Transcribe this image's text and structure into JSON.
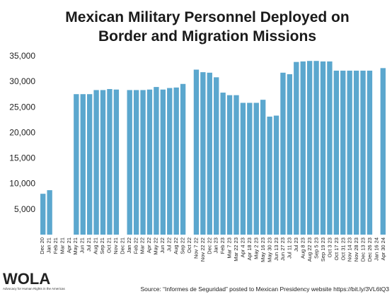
{
  "chart_data": {
    "type": "bar",
    "title_line1": "Mexican Military Personnel Deployed on",
    "title_line2": "Border and Migration Missions",
    "ylim": [
      0,
      35000
    ],
    "yticks": [
      "5,000",
      "10,000",
      "15,000",
      "20,000",
      "25,000",
      "30,000",
      "35,000"
    ],
    "ytick_values": [
      5000,
      10000,
      15000,
      20000,
      25000,
      30000,
      35000
    ],
    "bar_color": "#5ba7ce",
    "grid": false,
    "categories": [
      "Dec 20",
      "",
      "Jan 21",
      "",
      "Feb 21",
      "Mar 21",
      "Apr 21",
      "May 21",
      "",
      "Jun 21",
      "",
      "Jul 21",
      "Aug 21",
      "",
      "Sep 21",
      "",
      "Oct 21",
      "",
      "Nov 21",
      "",
      "Dec 21",
      "Jan 22",
      "",
      "Feb 22",
      "",
      "Mar 22",
      "Apr 22",
      "",
      "May 22",
      "",
      "Jun 22",
      "",
      "Jul 22",
      "Aug 22",
      "",
      "Sep 22",
      "",
      "Oct 22",
      "Nov 7 22",
      "",
      "Nov 22 22",
      "",
      "Dec 22",
      "",
      "Jan 23",
      "",
      "Feb 23",
      "",
      "Mar 7 23",
      "",
      "Mar 22 23",
      "",
      "Apr 4 23",
      "",
      "Apr 18 23",
      "",
      "May 2 23",
      "",
      "May 16 23",
      "",
      "May 30 23",
      "",
      "Jun 13 23",
      "",
      "Jun 27 23",
      "",
      "Jul 11 23",
      "",
      "Jul 23",
      "Aug 8 23",
      "",
      "Aug 22 23",
      "",
      "Sep 5 23",
      "",
      "Sep 19 23",
      "",
      "Oct 3 23",
      "",
      "Oct 17 23",
      "",
      "Oct 31 23",
      "",
      "Nov 14 23",
      "",
      "Nov 28 23",
      "",
      "Dec 13 23",
      "",
      "Dec 26 23",
      "",
      "Jan 16 24",
      "",
      "Apr 30 24"
    ],
    "x_labels": [
      "Dec 20",
      "Jan 21",
      "Feb 21",
      "Mar 21",
      "Apr 21",
      "May 21",
      "Jun 21",
      "Jul 21",
      "Aug 21",
      "Sep 21",
      "Oct 21",
      "Nov 21",
      "Dec 21",
      "Jan 22",
      "Feb 22",
      "Mar 22",
      "Apr 22",
      "May 22",
      "Jun 22",
      "Jul 22",
      "Aug 22",
      "Sep 22",
      "Oct 22",
      "Nov 7 22",
      "Nov 22 22",
      "Dec 22",
      "Jan 23",
      "Feb 23",
      "Mar 7 23",
      "Mar 22 23",
      "Apr 4 23",
      "Apr 18 23",
      "May 2 23",
      "May 16 23",
      "May 30 23",
      "Jun 13 23",
      "Jun 27 23",
      "Jul 11 23",
      "Jul 23",
      "Aug 8 23",
      "Aug 22 23",
      "Sep 5 23",
      "Sep 19 23",
      "Oct 3 23",
      "Oct 17 23",
      "Oct 31 23",
      "Nov 14 23",
      "Nov 28 23",
      "Dec 13 23",
      "Dec 26 23",
      "Jan 16 24",
      "Apr 30 24"
    ],
    "bars": [
      8000,
      8700,
      null,
      null,
      null,
      27500,
      27500,
      27500,
      28300,
      28300,
      28500,
      28400,
      null,
      28300,
      28300,
      28300,
      28400,
      28900,
      28400,
      28700,
      28800,
      29500,
      null,
      32300,
      31800,
      31700,
      30800,
      27800,
      27300,
      27300,
      25800,
      25800,
      25800,
      26400,
      23100,
      23300,
      31700,
      31400,
      33800,
      33900,
      34000,
      34000,
      33900,
      33900,
      32100,
      32100,
      32100,
      32100,
      32100,
      32100,
      null,
      32600
    ]
  },
  "source": "Source: “Informes de Seguridad” posted to Mexican Presidency website https://bit.ly/3VL6tQ3",
  "logo": {
    "name": "WOLA",
    "tagline": "Advocacy for Human Rights in the Americas"
  }
}
